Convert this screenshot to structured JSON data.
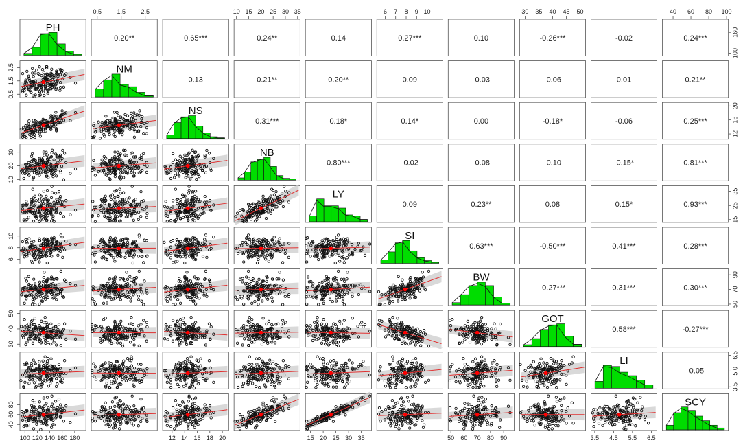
{
  "chart_data": {
    "type": "scatter",
    "variables": [
      "PH",
      "NM",
      "NS",
      "NB",
      "LY",
      "SI",
      "BW",
      "GOT",
      "LI",
      "SCY"
    ],
    "ranges": [
      [
        92,
        198
      ],
      [
        0.25,
        3.0
      ],
      [
        10.5,
        21
      ],
      [
        9,
        36
      ],
      [
        13,
        39
      ],
      [
        5.2,
        11.5
      ],
      [
        48,
        98
      ],
      [
        28,
        52
      ],
      [
        3.3,
        6.8
      ],
      [
        28,
        102
      ]
    ],
    "axis_ticks": [
      [
        100,
        120,
        140,
        160,
        180
      ],
      [
        0.5,
        1.5,
        2.5
      ],
      [
        12,
        14,
        16,
        18,
        20
      ],
      [
        10,
        20,
        30
      ],
      [
        15,
        20,
        25,
        30,
        35
      ],
      [
        6,
        8,
        10
      ],
      [
        50,
        60,
        70,
        80,
        90
      ],
      [
        30,
        40,
        50
      ],
      [
        3.5,
        4.5,
        5.5,
        6.5
      ],
      [
        40,
        60,
        80,
        100
      ]
    ],
    "top_axis": [
      {
        "col": 1,
        "labels": [
          "0.5",
          "1.5",
          "2.5"
        ],
        "values": [
          0.5,
          1.5,
          2.5
        ]
      },
      {
        "col": 3,
        "labels": [
          "10",
          "15",
          "20",
          "25",
          "30",
          "35"
        ],
        "values": [
          10,
          15,
          20,
          25,
          30,
          35
        ]
      },
      {
        "col": 5,
        "labels": [
          "6",
          "7",
          "8",
          "9",
          "10"
        ],
        "values": [
          6,
          7,
          8,
          9,
          10
        ]
      },
      {
        "col": 7,
        "labels": [
          "30",
          "35",
          "40",
          "45",
          "50"
        ],
        "values": [
          30,
          35,
          40,
          45,
          50
        ]
      },
      {
        "col": 9,
        "labels": [
          "40",
          "60",
          "80",
          "100"
        ],
        "values": [
          40,
          60,
          80,
          100
        ]
      }
    ],
    "bottom_axis": [
      {
        "col": 0,
        "labels": [
          "100",
          "120",
          "140",
          "160",
          "180"
        ],
        "values": [
          100,
          120,
          140,
          160,
          180
        ]
      },
      {
        "col": 2,
        "labels": [
          "12",
          "14",
          "16",
          "18",
          "20"
        ],
        "values": [
          12,
          14,
          16,
          18,
          20
        ]
      },
      {
        "col": 4,
        "labels": [
          "15",
          "20",
          "25",
          "30",
          "35"
        ],
        "values": [
          15,
          20,
          25,
          30,
          35
        ]
      },
      {
        "col": 6,
        "labels": [
          "50",
          "60",
          "70",
          "80",
          "90"
        ],
        "values": [
          50,
          60,
          70,
          80,
          90
        ]
      },
      {
        "col": 8,
        "labels": [
          "3.5",
          "4.5",
          "5.5",
          "6.5"
        ],
        "values": [
          3.5,
          4.5,
          5.5,
          6.5
        ]
      }
    ],
    "left_axis": [
      {
        "row": 1,
        "labels": [
          "0.5",
          "1.5",
          "2.5"
        ],
        "values": [
          0.5,
          1.5,
          2.5
        ]
      },
      {
        "row": 3,
        "labels": [
          "10",
          "20",
          "30"
        ],
        "values": [
          10,
          20,
          30
        ]
      },
      {
        "row": 5,
        "labels": [
          "6",
          "8",
          "10"
        ],
        "values": [
          6,
          8,
          10
        ]
      },
      {
        "row": 7,
        "labels": [
          "30",
          "40",
          "50"
        ],
        "values": [
          30,
          40,
          50
        ]
      },
      {
        "row": 9,
        "labels": [
          "40",
          "60",
          "80"
        ],
        "values": [
          40,
          60,
          80
        ]
      }
    ],
    "right_axis": [
      {
        "row": 0,
        "labels": [
          "100",
          "160"
        ],
        "values": [
          100,
          160
        ]
      },
      {
        "row": 2,
        "labels": [
          "12",
          "16",
          "20"
        ],
        "values": [
          12,
          16,
          20
        ]
      },
      {
        "row": 4,
        "labels": [
          "15",
          "25",
          "35"
        ],
        "values": [
          15,
          25,
          35
        ]
      },
      {
        "row": 6,
        "labels": [
          "50",
          "70",
          "90"
        ],
        "values": [
          50,
          70,
          90
        ]
      },
      {
        "row": 8,
        "labels": [
          "3.5",
          "5.0",
          "6.5"
        ],
        "values": [
          3.5,
          5.0,
          6.5
        ]
      }
    ],
    "correlations": [
      [
        "",
        "0.20**",
        "0.65***",
        "0.24**",
        "0.14",
        "0.27***",
        "0.10",
        "-0.26***",
        "-0.02",
        "0.24***"
      ],
      [
        "",
        "",
        "0.13",
        "0.21**",
        "0.20**",
        "0.09",
        "-0.03",
        "-0.06",
        "0.01",
        "0.21**"
      ],
      [
        "",
        "",
        "",
        "0.31***",
        "0.18*",
        "0.14*",
        "0.00",
        "-0.18*",
        "-0.06",
        "0.25***"
      ],
      [
        "",
        "",
        "",
        "",
        "0.80***",
        "-0.02",
        "-0.08",
        "-0.10",
        "-0.15*",
        "0.81***"
      ],
      [
        "",
        "",
        "",
        "",
        "",
        "0.09",
        "0.23**",
        "0.08",
        "0.15*",
        "0.93***"
      ],
      [
        "",
        "",
        "",
        "",
        "",
        "",
        "0.63***",
        "-0.50***",
        "0.41***",
        "0.28***"
      ],
      [
        "",
        "",
        "",
        "",
        "",
        "",
        "",
        "-0.27***",
        "0.31***",
        "0.30***"
      ],
      [
        "",
        "",
        "",
        "",
        "",
        "",
        "",
        "",
        "0.58***",
        "-0.27***"
      ],
      [
        "",
        "",
        "",
        "",
        "",
        "",
        "",
        "",
        "",
        "-0.05"
      ],
      [
        "",
        "",
        "",
        "",
        "",
        "",
        "",
        "",
        "",
        ""
      ]
    ],
    "histograms": [
      [
        0.08,
        0.35,
        0.95,
        1.0,
        0.5,
        0.18,
        0.05
      ],
      [
        0.35,
        0.75,
        1.0,
        0.55,
        0.45,
        0.2,
        0.05
      ],
      [
        0.15,
        0.7,
        0.95,
        1.0,
        0.55,
        0.25,
        0.08,
        0.03
      ],
      [
        0.1,
        0.35,
        0.8,
        0.9,
        1.0,
        0.6,
        0.2,
        0.08,
        0.05
      ],
      [
        0.25,
        1.0,
        0.7,
        0.7,
        0.6,
        0.3,
        0.25,
        0.1
      ],
      [
        0.15,
        0.5,
        0.9,
        1.0,
        0.55,
        0.25,
        0.12,
        0.05
      ],
      [
        0.1,
        0.45,
        0.85,
        1.0,
        0.85,
        0.35,
        0.08
      ],
      [
        0.08,
        0.35,
        0.75,
        0.95,
        1.0,
        0.45,
        0.1
      ],
      [
        0.3,
        1.0,
        0.95,
        0.7,
        0.55,
        0.35,
        0.15
      ],
      [
        0.2,
        0.75,
        1.0,
        0.85,
        0.6,
        0.4,
        0.2,
        0.08
      ]
    ],
    "colors": {
      "histogram": "#00dd00",
      "fit_line": "#e03030",
      "band": "#d0d0d0",
      "point": "#111111",
      "centroid": "#ff0000"
    }
  }
}
